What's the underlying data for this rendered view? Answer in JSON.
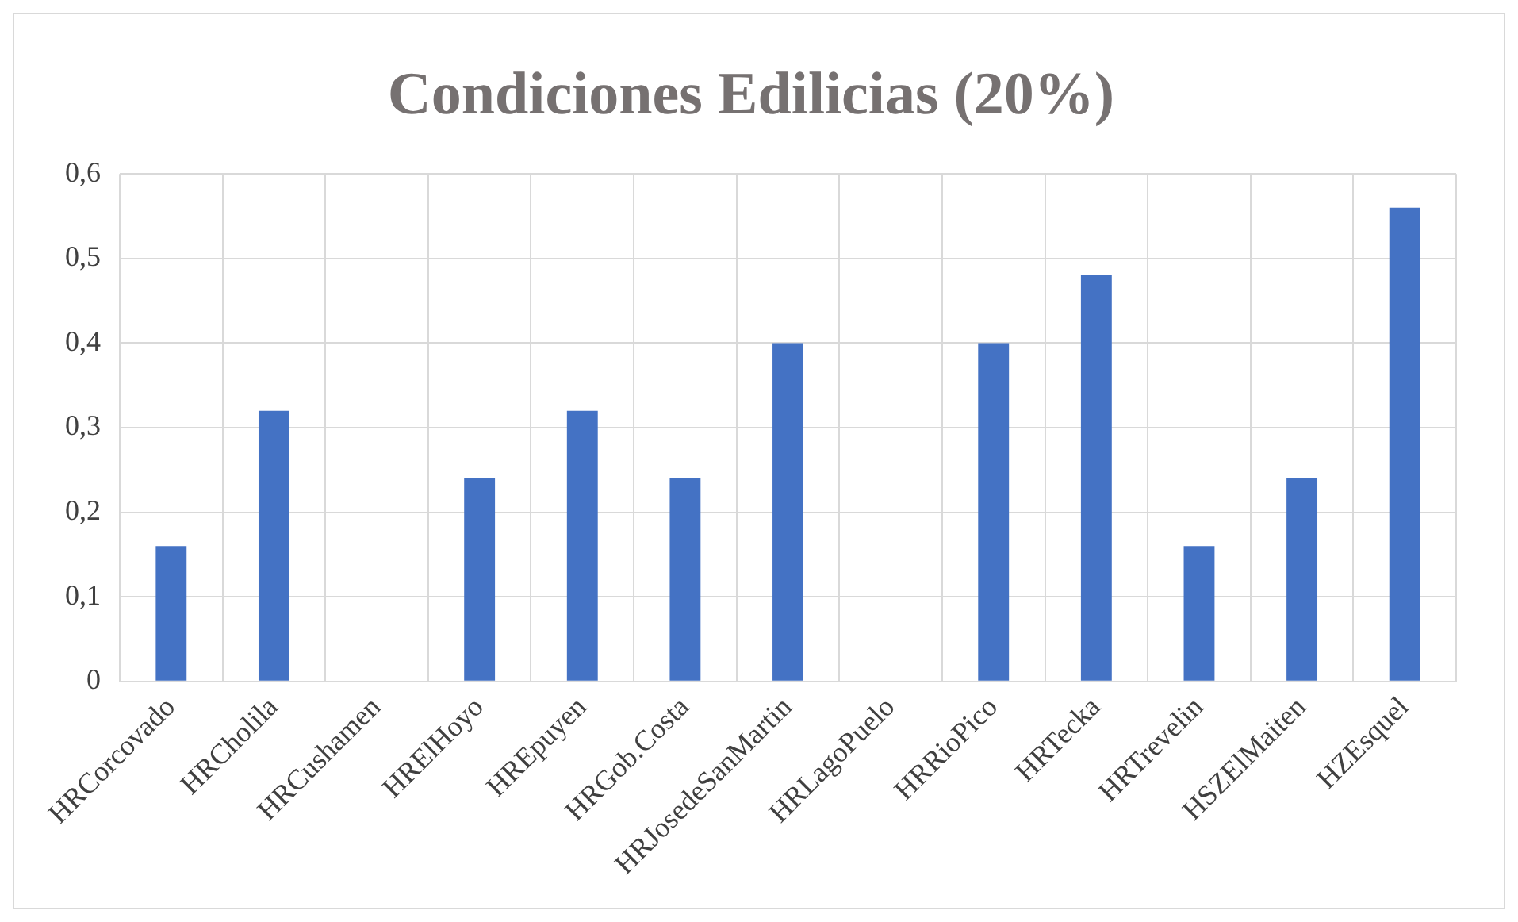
{
  "chart_data": {
    "type": "bar",
    "title": "Condiciones Edilicias (20%)",
    "categories": [
      "HRCorcovado",
      "HRCholila",
      "HRCushamen",
      "HRElHoyo",
      "HREpuyen",
      "HRGob.Costa",
      "HRJosedeSanMartin",
      "HRLagoPuelo",
      "HRRioPico",
      "HRTecka",
      "HRTrevelin",
      "HSZElMaiten",
      "HZEsquel"
    ],
    "values": [
      0.16,
      0.32,
      0,
      0.24,
      0.32,
      0.24,
      0.4,
      0,
      0.4,
      0.48,
      0.16,
      0.24,
      0.56
    ],
    "color": "#4472c4",
    "ylim": [
      0,
      0.6
    ],
    "yticks": [
      {
        "value": 0,
        "label": "0"
      },
      {
        "value": 0.1,
        "label": "0,1"
      },
      {
        "value": 0.2,
        "label": "0,2"
      },
      {
        "value": 0.3,
        "label": "0,3"
      },
      {
        "value": 0.4,
        "label": "0,4"
      },
      {
        "value": 0.5,
        "label": "0,5"
      },
      {
        "value": 0.6,
        "label": "0,6"
      }
    ],
    "grid": true
  }
}
